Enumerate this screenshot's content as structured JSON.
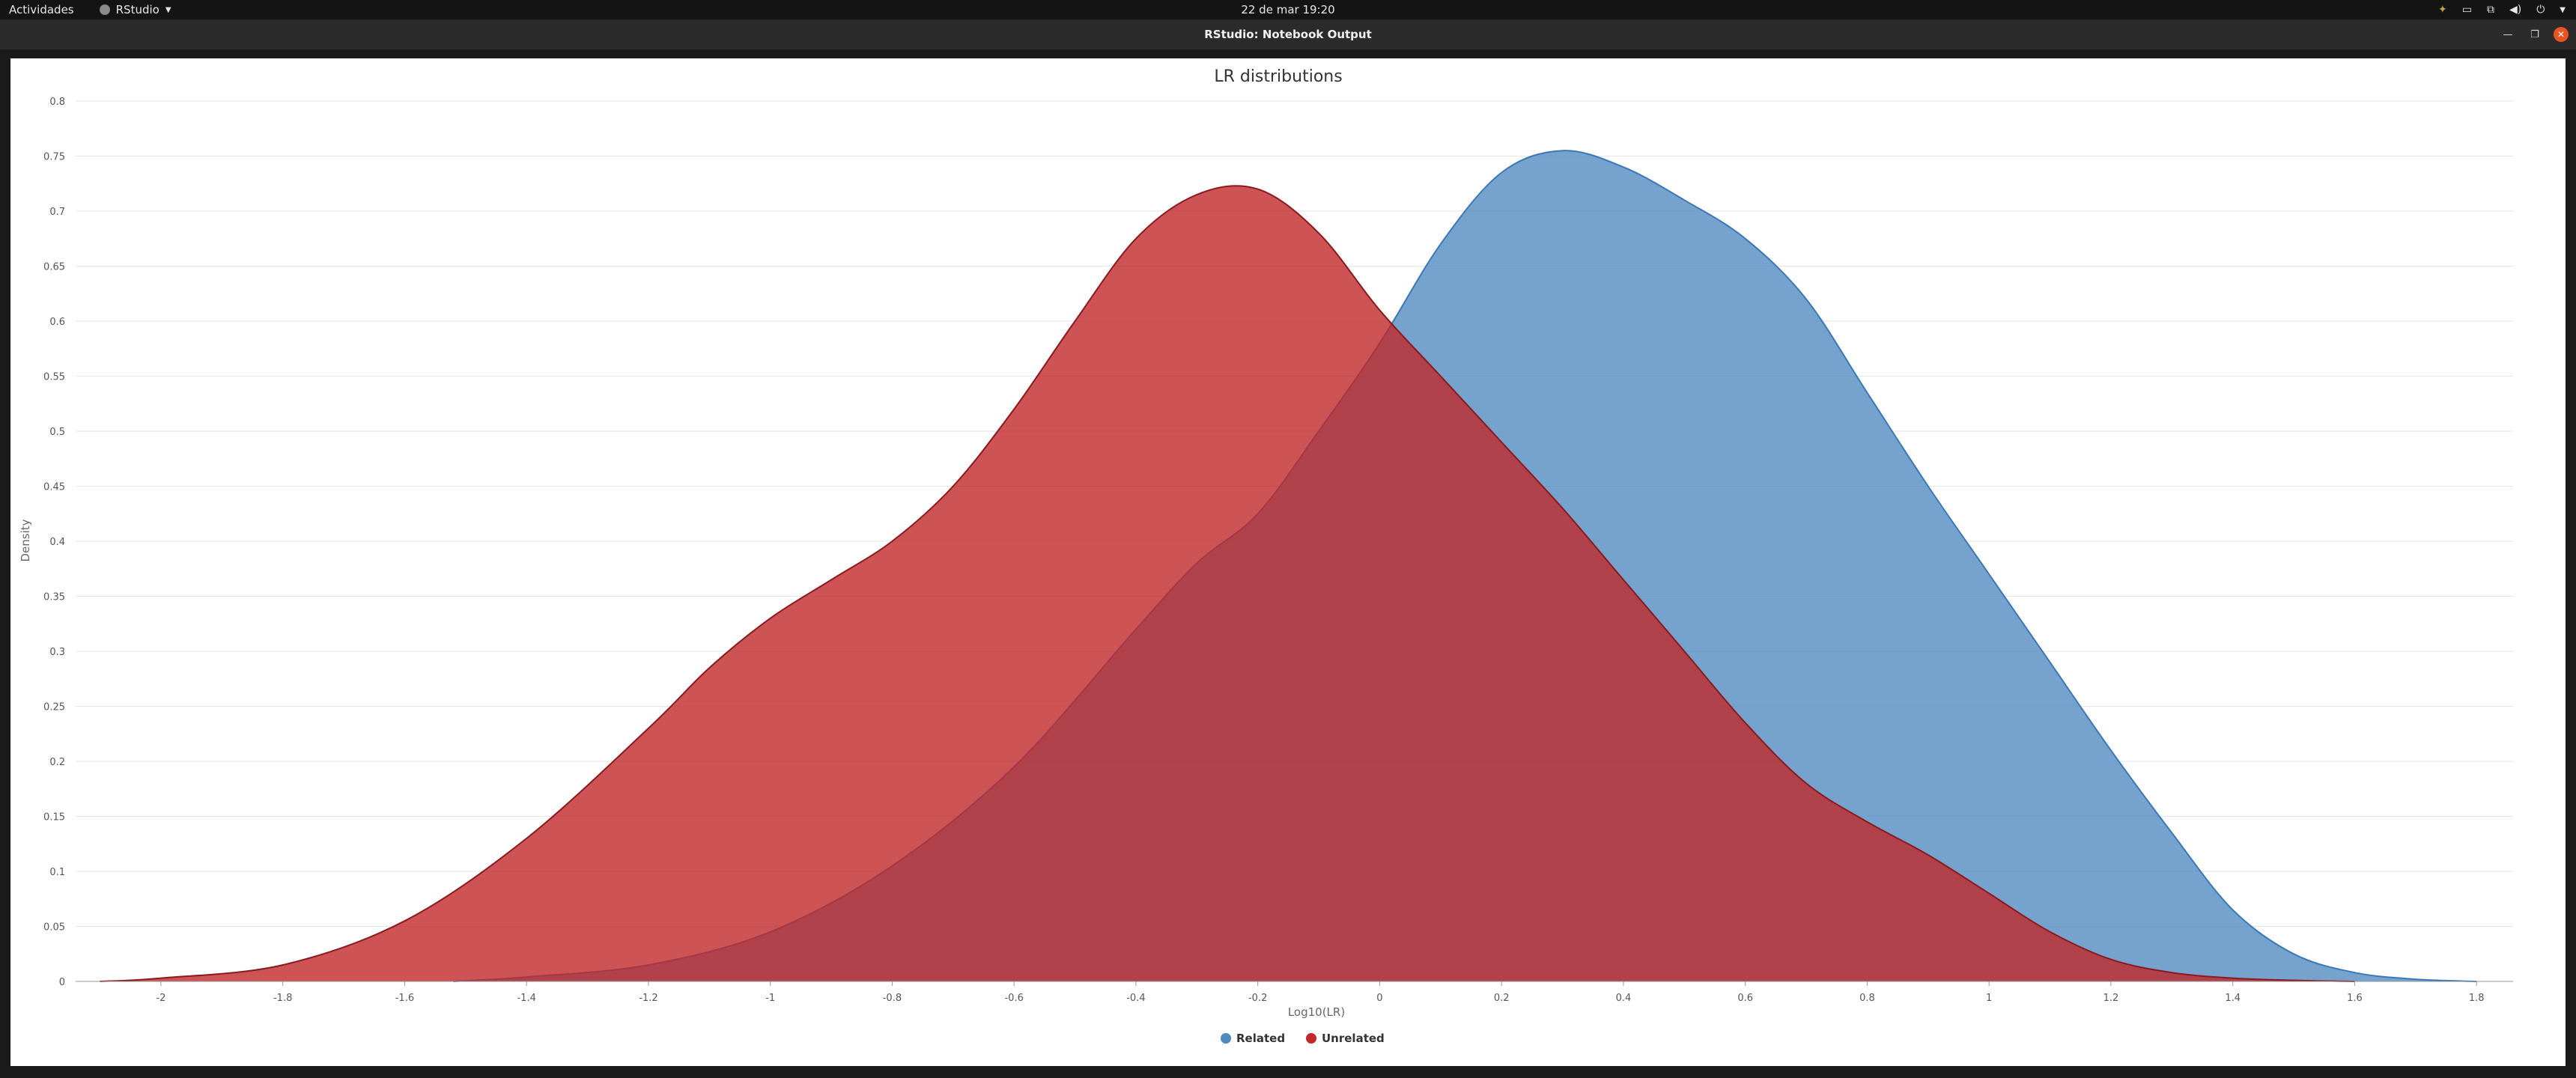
{
  "system": {
    "activities_label": "Actividades",
    "app_menu_label": "RStudio",
    "clock": "22 de mar  19:20"
  },
  "window": {
    "title": "RStudio: Notebook Output"
  },
  "icons": {
    "app": "rstudio-icon",
    "tray": [
      "color-picker-icon",
      "folder-icon",
      "network-icon",
      "volume-icon",
      "power-icon",
      "chevron-down-icon"
    ],
    "window": [
      "minimize-icon",
      "restore-icon",
      "close-icon"
    ]
  },
  "chart_data": {
    "type": "area",
    "title": "LR distributions",
    "xlabel": "Log10(LR)",
    "ylabel": "Density",
    "xlim": [
      -2.14,
      1.86
    ],
    "ylim": [
      0,
      0.8
    ],
    "x_ticks": [
      -2,
      -1.8,
      -1.6,
      -1.4,
      -1.2,
      -1,
      -0.8,
      -0.6,
      -0.4,
      -0.2,
      0,
      0.2,
      0.4,
      0.6,
      0.8,
      1,
      1.2,
      1.4,
      1.6,
      1.8
    ],
    "y_ticks": [
      0,
      0.05,
      0.1,
      0.15,
      0.2,
      0.25,
      0.3,
      0.35,
      0.4,
      0.45,
      0.5,
      0.55,
      0.6,
      0.65,
      0.7,
      0.75,
      0.8
    ],
    "grid": "horizontal",
    "legend_position": "bottom-center",
    "series": [
      {
        "name": "Related",
        "color": "#4f89bf",
        "fill_opacity": 0.78,
        "stroke": "#3a78b6",
        "points": [
          [
            -1.52,
            0
          ],
          [
            -1.4,
            0.004
          ],
          [
            -1.2,
            0.015
          ],
          [
            -1.0,
            0.045
          ],
          [
            -0.8,
            0.105
          ],
          [
            -0.6,
            0.195
          ],
          [
            -0.4,
            0.32
          ],
          [
            -0.3,
            0.38
          ],
          [
            -0.2,
            0.425
          ],
          [
            -0.1,
            0.5
          ],
          [
            0,
            0.58
          ],
          [
            0.1,
            0.67
          ],
          [
            0.2,
            0.735
          ],
          [
            0.3,
            0.755
          ],
          [
            0.4,
            0.74
          ],
          [
            0.5,
            0.71
          ],
          [
            0.6,
            0.675
          ],
          [
            0.7,
            0.62
          ],
          [
            0.8,
            0.535
          ],
          [
            0.9,
            0.45
          ],
          [
            1.0,
            0.37
          ],
          [
            1.1,
            0.29
          ],
          [
            1.2,
            0.21
          ],
          [
            1.3,
            0.135
          ],
          [
            1.4,
            0.065
          ],
          [
            1.5,
            0.025
          ],
          [
            1.6,
            0.008
          ],
          [
            1.7,
            0.002
          ],
          [
            1.8,
            0
          ]
        ]
      },
      {
        "name": "Unrelated",
        "color": "#c0282b",
        "fill_opacity": 0.8,
        "stroke": "#8b1a1d",
        "points": [
          [
            -2.1,
            0
          ],
          [
            -2.0,
            0.003
          ],
          [
            -1.8,
            0.015
          ],
          [
            -1.6,
            0.055
          ],
          [
            -1.4,
            0.13
          ],
          [
            -1.2,
            0.23
          ],
          [
            -1.1,
            0.285
          ],
          [
            -1.0,
            0.33
          ],
          [
            -0.9,
            0.365
          ],
          [
            -0.8,
            0.4
          ],
          [
            -0.7,
            0.45
          ],
          [
            -0.6,
            0.52
          ],
          [
            -0.5,
            0.6
          ],
          [
            -0.4,
            0.675
          ],
          [
            -0.3,
            0.715
          ],
          [
            -0.2,
            0.72
          ],
          [
            -0.1,
            0.68
          ],
          [
            0,
            0.61
          ],
          [
            0.1,
            0.55
          ],
          [
            0.2,
            0.49
          ],
          [
            0.3,
            0.43
          ],
          [
            0.4,
            0.365
          ],
          [
            0.5,
            0.3
          ],
          [
            0.6,
            0.235
          ],
          [
            0.7,
            0.18
          ],
          [
            0.8,
            0.145
          ],
          [
            0.9,
            0.115
          ],
          [
            1.0,
            0.08
          ],
          [
            1.1,
            0.045
          ],
          [
            1.2,
            0.02
          ],
          [
            1.3,
            0.008
          ],
          [
            1.4,
            0.003
          ],
          [
            1.5,
            0.001
          ],
          [
            1.6,
            0
          ]
        ]
      }
    ]
  }
}
